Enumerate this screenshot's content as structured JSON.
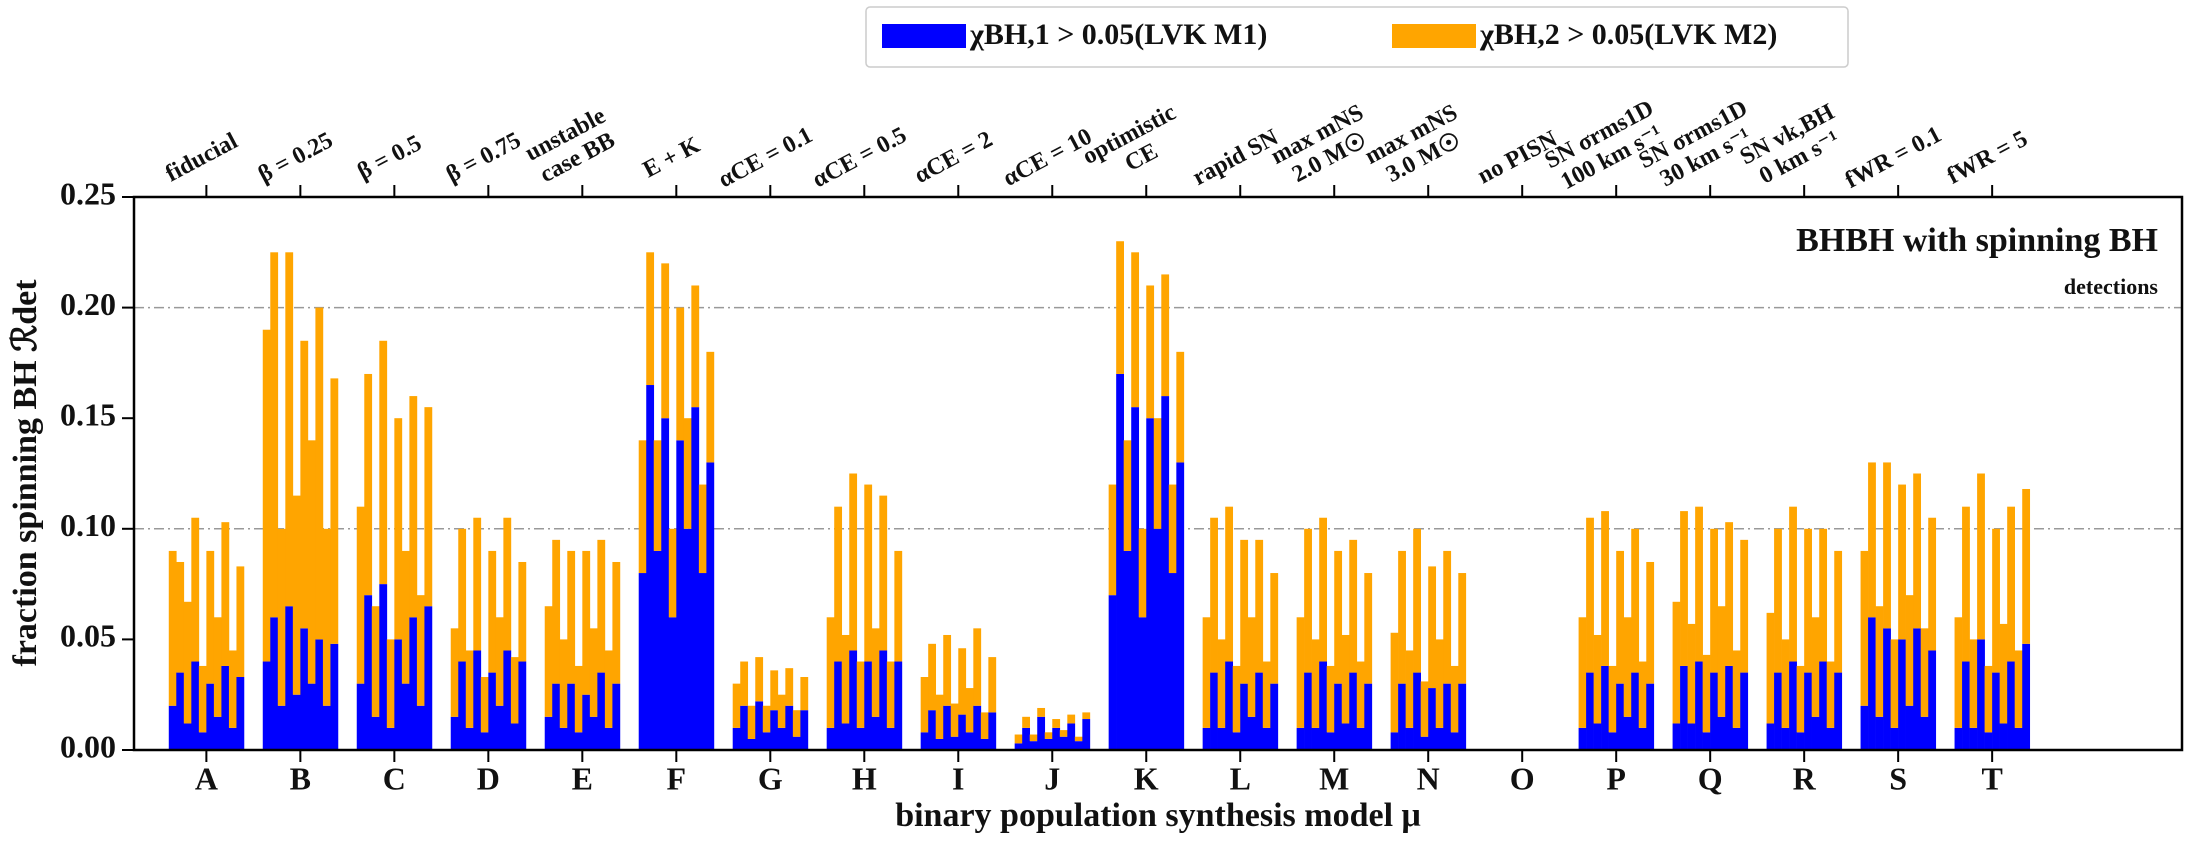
{
  "chart_data": {
    "type": "stacked_bar",
    "title": "BHBH with spinning BH",
    "subtitle": "detections",
    "x_label": "binary population synthesis model μ",
    "y_label": "fraction spinning BH  ℛdet",
    "categories": [
      "A",
      "B",
      "C",
      "D",
      "E",
      "F",
      "G",
      "H",
      "I",
      "J",
      "K",
      "L",
      "M",
      "N",
      "O",
      "P",
      "Q",
      "R",
      "S",
      "T"
    ],
    "top_labels": [
      [
        "fiducial"
      ],
      [
        "β = 0.25"
      ],
      [
        "β = 0.5"
      ],
      [
        "β = 0.75"
      ],
      [
        "unstable",
        "case BB"
      ],
      [
        "E + K"
      ],
      [
        "αCE = 0.1"
      ],
      [
        "αCE = 0.5"
      ],
      [
        "αCE = 2"
      ],
      [
        "αCE = 10"
      ],
      [
        "optimistic",
        "CE"
      ],
      [
        "rapid SN"
      ],
      [
        "max mNS",
        "2.0 M☉"
      ],
      [
        "max mNS",
        "3.0 M☉"
      ],
      [
        "no PISN"
      ],
      [
        "SN σrms1D",
        "100 km s⁻¹"
      ],
      [
        "SN σrms1D",
        "30 km s⁻¹"
      ],
      [
        "SN vk,BH",
        "0 km s⁻¹"
      ],
      [
        "fWR = 0.1"
      ],
      [
        "fWR = 5"
      ]
    ],
    "xlim": [
      -0.77,
      21.02
    ],
    "ylim": [
      0,
      0.25
    ],
    "yticks": [
      {
        "value": 0,
        "label": "0.00"
      },
      {
        "value": 0.05,
        "label": "0.05"
      },
      {
        "value": 0.1,
        "label": "0.10"
      },
      {
        "value": 0.15,
        "label": "0.15"
      },
      {
        "value": 0.2,
        "label": "0.20"
      },
      {
        "value": 0.25,
        "label": "0.25"
      }
    ],
    "hlines": [
      0.1,
      0.2
    ],
    "series": [
      {
        "name": "χBH,1 > 0.05(LVK M1)",
        "color": "#0000ff",
        "values": [
          [
            0.02,
            0.035,
            0.012,
            0.04,
            0.008,
            0.03,
            0.015,
            0.038,
            0.01,
            0.033
          ],
          [
            0.04,
            0.06,
            0.02,
            0.065,
            0.025,
            0.055,
            0.03,
            0.05,
            0.02,
            0.048
          ],
          [
            0.03,
            0.07,
            0.015,
            0.075,
            0.01,
            0.05,
            0.03,
            0.06,
            0.02,
            0.065
          ],
          [
            0.015,
            0.04,
            0.01,
            0.045,
            0.008,
            0.035,
            0.02,
            0.045,
            0.012,
            0.04
          ],
          [
            0.015,
            0.03,
            0.01,
            0.03,
            0.008,
            0.025,
            0.015,
            0.035,
            0.01,
            0.03
          ],
          [
            0.08,
            0.165,
            0.09,
            0.15,
            0.06,
            0.14,
            0.1,
            0.155,
            0.08,
            0.13
          ],
          [
            0.01,
            0.02,
            0.005,
            0.022,
            0.008,
            0.018,
            0.01,
            0.02,
            0.006,
            0.018
          ],
          [
            0.01,
            0.04,
            0.012,
            0.045,
            0.01,
            0.04,
            0.015,
            0.045,
            0.01,
            0.04
          ],
          [
            0.008,
            0.018,
            0.005,
            0.02,
            0.006,
            0.016,
            0.008,
            0.02,
            0.005,
            0.017
          ],
          [
            0.003,
            0.01,
            0.004,
            0.015,
            0.005,
            0.01,
            0.006,
            0.012,
            0.004,
            0.014
          ],
          [
            0.07,
            0.17,
            0.09,
            0.155,
            0.06,
            0.15,
            0.1,
            0.16,
            0.08,
            0.13
          ],
          [
            0.01,
            0.035,
            0.01,
            0.04,
            0.008,
            0.03,
            0.015,
            0.035,
            0.01,
            0.03
          ],
          [
            0.01,
            0.035,
            0.01,
            0.04,
            0.008,
            0.03,
            0.012,
            0.035,
            0.01,
            0.03
          ],
          [
            0.008,
            0.03,
            0.01,
            0.035,
            0.006,
            0.028,
            0.01,
            0.03,
            0.008,
            0.03
          ],
          [
            0,
            0,
            0,
            0,
            0,
            0,
            0,
            0,
            0,
            0
          ],
          [
            0.01,
            0.035,
            0.012,
            0.038,
            0.008,
            0.03,
            0.015,
            0.035,
            0.01,
            0.03
          ],
          [
            0.012,
            0.038,
            0.012,
            0.04,
            0.008,
            0.035,
            0.015,
            0.038,
            0.01,
            0.035
          ],
          [
            0.012,
            0.035,
            0.01,
            0.04,
            0.008,
            0.035,
            0.015,
            0.04,
            0.01,
            0.035
          ],
          [
            0.02,
            0.06,
            0.015,
            0.055,
            0.01,
            0.05,
            0.02,
            0.055,
            0.015,
            0.045
          ],
          [
            0.01,
            0.04,
            0.01,
            0.05,
            0.008,
            0.035,
            0.012,
            0.04,
            0.01,
            0.048
          ]
        ]
      },
      {
        "name": "χBH,2 > 0.05(LVK M2)",
        "color": "#ffa500",
        "values": [
          [
            0.07,
            0.05,
            0.055,
            0.065,
            0.03,
            0.06,
            0.045,
            0.065,
            0.035,
            0.05
          ],
          [
            0.15,
            0.165,
            0.08,
            0.16,
            0.09,
            0.13,
            0.11,
            0.15,
            0.08,
            0.12
          ],
          [
            0.08,
            0.1,
            0.05,
            0.11,
            0.04,
            0.1,
            0.06,
            0.1,
            0.05,
            0.09
          ],
          [
            0.04,
            0.06,
            0.035,
            0.06,
            0.025,
            0.055,
            0.04,
            0.06,
            0.03,
            0.045
          ],
          [
            0.05,
            0.065,
            0.04,
            0.06,
            0.03,
            0.065,
            0.04,
            0.06,
            0.035,
            0.055
          ],
          [
            0.06,
            0.06,
            0.05,
            0.07,
            0.04,
            0.06,
            0.05,
            0.055,
            0.04,
            0.05
          ],
          [
            0.02,
            0.02,
            0.015,
            0.02,
            0.012,
            0.018,
            0.015,
            0.017,
            0.012,
            0.015
          ],
          [
            0.05,
            0.07,
            0.04,
            0.08,
            0.03,
            0.08,
            0.04,
            0.07,
            0.03,
            0.05
          ],
          [
            0.025,
            0.03,
            0.02,
            0.032,
            0.015,
            0.03,
            0.02,
            0.035,
            0.012,
            0.025
          ],
          [
            0.004,
            0.005,
            0.003,
            0.004,
            0.003,
            0.004,
            0.003,
            0.004,
            0.002,
            0.003
          ],
          [
            0.05,
            0.06,
            0.05,
            0.07,
            0.04,
            0.06,
            0.05,
            0.055,
            0.04,
            0.05
          ],
          [
            0.05,
            0.07,
            0.04,
            0.07,
            0.03,
            0.065,
            0.045,
            0.06,
            0.03,
            0.05
          ],
          [
            0.05,
            0.065,
            0.04,
            0.065,
            0.03,
            0.06,
            0.04,
            0.06,
            0.03,
            0.05
          ],
          [
            0.045,
            0.06,
            0.035,
            0.065,
            0.025,
            0.055,
            0.04,
            0.06,
            0.03,
            0.05
          ],
          [
            0,
            0,
            0,
            0,
            0,
            0,
            0,
            0,
            0,
            0
          ],
          [
            0.05,
            0.07,
            0.04,
            0.07,
            0.03,
            0.06,
            0.045,
            0.065,
            0.03,
            0.055
          ],
          [
            0.055,
            0.07,
            0.045,
            0.07,
            0.035,
            0.065,
            0.05,
            0.065,
            0.035,
            0.06
          ],
          [
            0.05,
            0.065,
            0.04,
            0.07,
            0.03,
            0.065,
            0.045,
            0.06,
            0.03,
            0.055
          ],
          [
            0.07,
            0.07,
            0.05,
            0.075,
            0.04,
            0.07,
            0.05,
            0.07,
            0.04,
            0.06
          ],
          [
            0.05,
            0.07,
            0.04,
            0.075,
            0.03,
            0.065,
            0.045,
            0.07,
            0.035,
            0.07
          ]
        ]
      }
    ]
  }
}
